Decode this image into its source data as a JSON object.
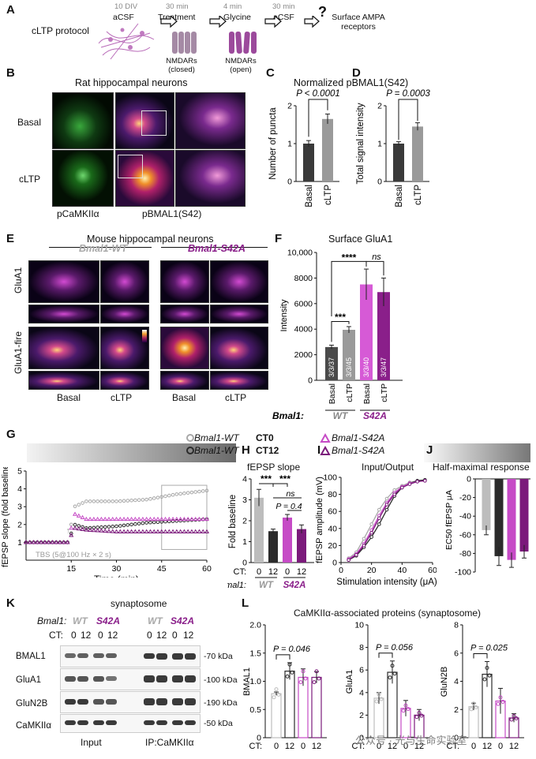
{
  "panelA": {
    "letter": "A",
    "protocol_label": "cLTP protocol",
    "steps": [
      {
        "time": "10 DIV",
        "label": "aCSF"
      },
      {
        "time": "30 min",
        "label": "Treatment"
      },
      {
        "time": "4 min",
        "label": "Glycine"
      },
      {
        "time": "30 min",
        "label": "aCSF"
      }
    ],
    "final": "Surface AMPA receptors",
    "final_q": "?",
    "nmdar_closed": "NMDARs (closed)",
    "nmdar_open": "NMDARs (open)"
  },
  "panelB": {
    "letter": "B",
    "title": "Rat hippocampal neurons",
    "rows": [
      "Basal",
      "cLTP"
    ],
    "cols": [
      "pCaMKIIα",
      "pBMAL1(S42)"
    ]
  },
  "panelCD": {
    "title": "Normalized pBMAL1(S42)"
  },
  "panelC": {
    "letter": "C",
    "pval": "P < 0.0001",
    "ylabel": "Number of puncta",
    "categories": [
      "Basal",
      "cLTP"
    ]
  },
  "panelD": {
    "letter": "D",
    "pval": "P = 0.0003",
    "ylabel": "Total signal intensity",
    "categories": [
      "Basal",
      "cLTP"
    ]
  },
  "panelE": {
    "letter": "E",
    "title": "Mouse hippocampal neurons",
    "genotypes": [
      "Bmal1-WT",
      "Bmal1-S42A"
    ],
    "rows": [
      "GluA1",
      "GluA1-fire"
    ],
    "cols": [
      "Basal",
      "cLTP",
      "Basal",
      "cLTP"
    ]
  },
  "panelF": {
    "letter": "F",
    "title": "Surface GluA1",
    "ylabel": "Intensity",
    "sig_wt": "***",
    "sig_main": "****",
    "sig_ns": "ns",
    "genotype_prefix": "Bmal1:",
    "genotypes": [
      "WT",
      "S42A"
    ]
  },
  "panelG": {
    "letter": "G",
    "ylabel": "fEPSP slope (fold baseline)",
    "xlabel": "Time (min)",
    "tbs": "TBS (5@100 Hz × 2 s)"
  },
  "legend": [
    {
      "name": "Bmal1-WT",
      "tag": "CT0",
      "marker": "circle",
      "color": "#a8a8a8"
    },
    {
      "name": "Bmal1-WT",
      "tag": "CT12",
      "marker": "circle",
      "color": "#2b2b2b"
    },
    {
      "name": "Bmal1-S42A",
      "tag": "",
      "marker": "triangle",
      "color": "#c64bc6"
    },
    {
      "name": "Bmal1-S42A",
      "tag": "",
      "marker": "triangle",
      "color": "#7b1a7b"
    }
  ],
  "panelH": {
    "letter": "H",
    "title": "fEPSP slope",
    "ylabel": "Fold baseline",
    "sig1": "***",
    "sig2": "***",
    "ns": "ns",
    "pval": "P = 0.4",
    "ct_prefix": "CT:",
    "cts": [
      "0",
      "12",
      "0",
      "12"
    ],
    "genotype_prefix": "Bmal1:",
    "genotypes": [
      "WT",
      "S42A"
    ]
  },
  "panelI": {
    "letter": "I",
    "title": "Input/Output",
    "ylabel": "fEPSP amplitude (mV)",
    "xlabel": "Stimulation intensity (μA)"
  },
  "panelJ": {
    "letter": "J",
    "title": "Half-maximal response",
    "ylabel": "EC50 fEPSP μA"
  },
  "panelK": {
    "letter": "K",
    "title": "synaptosome",
    "genotype_prefix": "Bmal1:",
    "genotypes": [
      "WT",
      "S42A",
      "WT",
      "S42A"
    ],
    "ct_prefix": "CT:",
    "cts": [
      "0",
      "12",
      "0",
      "12",
      "0",
      "12",
      "0",
      "12"
    ],
    "rows": [
      "BMAL1",
      "GluA1",
      "GluN2B",
      "CaMKIIα"
    ],
    "kda": [
      "-70 kDa",
      "-100 kDa",
      "-190 kDa",
      "-50 kDa"
    ],
    "groups": [
      "Input",
      "IP:CaMKIIα"
    ]
  },
  "panelL": {
    "letter": "L",
    "title": "CaMKIIα-associated proteins (synaptosome)",
    "subs": [
      {
        "ylabel": "BMAL1",
        "pval": "P = 0.046"
      },
      {
        "ylabel": "GluA1",
        "pval": "P = 0.056"
      },
      {
        "ylabel": "GluN2B",
        "pval": "P = 0.025"
      }
    ],
    "ct_prefix": "CT:",
    "cts": [
      "0",
      "12",
      "0",
      "12"
    ]
  },
  "watermark": "公众号 · 光与生命实验室",
  "chart_data": [
    {
      "id": "C",
      "type": "bar",
      "categories": [
        "Basal",
        "cLTP"
      ],
      "values": [
        1.0,
        1.65
      ],
      "errors": [
        0.08,
        0.13
      ],
      "ylim": [
        0,
        2
      ],
      "yticks": [
        0,
        1,
        2
      ],
      "colors": [
        "#3a3a3a",
        "#9a9a9a"
      ]
    },
    {
      "id": "D",
      "type": "bar",
      "categories": [
        "Basal",
        "cLTP"
      ],
      "values": [
        1.0,
        1.45
      ],
      "errors": [
        0.05,
        0.1
      ],
      "ylim": [
        0,
        2
      ],
      "yticks": [
        0,
        1,
        2
      ],
      "colors": [
        "#3a3a3a",
        "#9a9a9a"
      ]
    },
    {
      "id": "F",
      "type": "bar",
      "categories": [
        "Basal WT",
        "cLTP WT",
        "Basal S42A",
        "cLTP S42A"
      ],
      "values": [
        2600,
        3950,
        7500,
        6900
      ],
      "errors": [
        150,
        250,
        1200,
        1100
      ],
      "n_labels": [
        "3/3/37",
        "3/3/45",
        "3/3/40",
        "3/3/47"
      ],
      "ylim": [
        0,
        10000
      ],
      "yticks": [
        0,
        2000,
        4000,
        6000,
        8000,
        10000
      ],
      "ytick_labels": [
        "0",
        "2000",
        "4000",
        "6000",
        "8000",
        "10,000"
      ],
      "colors": [
        "#4a4a4a",
        "#9a9a9a",
        "#d65ad6",
        "#8a1f8a"
      ]
    },
    {
      "id": "G",
      "type": "scatter",
      "xlim": [
        0,
        60
      ],
      "ylim": [
        0,
        5
      ],
      "xticks": [
        15,
        30,
        45,
        60
      ],
      "yticks": [
        1,
        2,
        3,
        4,
        5
      ],
      "series": [
        {
          "color": "#a8a8a8",
          "marker": "circle",
          "x": [
            0,
            14,
            16,
            20,
            30,
            40,
            50,
            60
          ],
          "y": [
            1,
            1,
            3.0,
            3.3,
            3.3,
            3.4,
            3.7,
            3.9
          ]
        },
        {
          "color": "#2b2b2b",
          "marker": "circle",
          "x": [
            0,
            14,
            16,
            20,
            30,
            40,
            50,
            60
          ],
          "y": [
            1,
            1,
            2.0,
            1.8,
            1.9,
            2.1,
            2.2,
            2.3
          ]
        },
        {
          "color": "#c64bc6",
          "marker": "triangle",
          "x": [
            0,
            14,
            16,
            20,
            30,
            40,
            50,
            60
          ],
          "y": [
            1,
            1,
            2.6,
            2.3,
            2.3,
            2.3,
            2.3,
            2.3
          ]
        },
        {
          "color": "#7b1a7b",
          "marker": "triangle",
          "x": [
            0,
            14,
            16,
            20,
            30,
            40,
            50,
            60
          ],
          "y": [
            1,
            1,
            1.8,
            1.7,
            1.6,
            1.6,
            1.6,
            1.6
          ]
        }
      ]
    },
    {
      "id": "H",
      "type": "bar",
      "categories": [
        "WT CT0",
        "WT CT12",
        "S42A CT0",
        "S42A CT12"
      ],
      "values": [
        3.1,
        1.5,
        2.15,
        1.6
      ],
      "errors": [
        0.4,
        0.1,
        0.15,
        0.2
      ],
      "ylim": [
        0,
        4
      ],
      "yticks": [
        0,
        1,
        2,
        3,
        4
      ],
      "colors": [
        "#bdbdbd",
        "#2b2b2b",
        "#c64bc6",
        "#7b1a7b"
      ]
    },
    {
      "id": "I",
      "type": "line",
      "xlim": [
        0,
        60
      ],
      "ylim": [
        0,
        100
      ],
      "xticks": [
        0,
        20,
        40,
        60
      ],
      "yticks": [
        0,
        20,
        40,
        60,
        80,
        100
      ],
      "series": [
        {
          "color": "#a8a8a8",
          "x": [
            5,
            10,
            15,
            20,
            25,
            30,
            35,
            40,
            45,
            50,
            55
          ],
          "y": [
            5,
            12,
            28,
            45,
            62,
            75,
            85,
            90,
            94,
            96,
            97
          ]
        },
        {
          "color": "#2b2b2b",
          "x": [
            5,
            10,
            15,
            20,
            25,
            30,
            35,
            40,
            45,
            50,
            55
          ],
          "y": [
            3,
            8,
            18,
            30,
            45,
            62,
            78,
            88,
            93,
            96,
            97
          ]
        },
        {
          "color": "#c64bc6",
          "x": [
            5,
            10,
            15,
            20,
            25,
            30,
            35,
            40,
            45,
            50,
            55
          ],
          "y": [
            4,
            10,
            22,
            38,
            55,
            70,
            82,
            89,
            93,
            95,
            96
          ]
        },
        {
          "color": "#7b1a7b",
          "x": [
            5,
            10,
            15,
            20,
            25,
            30,
            35,
            40,
            45,
            50,
            55
          ],
          "y": [
            3,
            9,
            20,
            35,
            52,
            68,
            80,
            88,
            92,
            95,
            96
          ]
        }
      ]
    },
    {
      "id": "J",
      "type": "bar",
      "categories": [
        "WT CT0",
        "WT CT12",
        "S42A CT0",
        "S42A CT12"
      ],
      "values": [
        -55,
        -83,
        -87,
        -78
      ],
      "errors": [
        5,
        10,
        8,
        7
      ],
      "ylim": [
        -100,
        0
      ],
      "yticks": [
        0,
        -20,
        -40,
        -60,
        -80,
        -100
      ],
      "colors": [
        "#bdbdbd",
        "#2b2b2b",
        "#c64bc6",
        "#7b1a7b"
      ]
    },
    {
      "id": "L-BMAL1",
      "type": "bar",
      "categories": [
        "WT CT0",
        "WT CT12",
        "S42A CT0",
        "S42A CT12"
      ],
      "values": [
        0.78,
        1.18,
        1.07,
        1.07
      ],
      "errors": [
        0.03,
        0.15,
        0.15,
        0.1
      ],
      "ylim": [
        0,
        2.0
      ],
      "yticks": [
        0,
        0.5,
        1.0,
        1.5,
        2.0
      ],
      "ytick_labels": [
        "0",
        "0.5",
        "1.0",
        "1.5",
        "2.0"
      ],
      "colors": [
        "#bdbdbd",
        "#2b2b2b",
        "#c64bc6",
        "#7b1a7b"
      ]
    },
    {
      "id": "L-GluA1",
      "type": "bar",
      "categories": [
        "WT CT0",
        "WT CT12",
        "S42A CT0",
        "S42A CT12"
      ],
      "values": [
        3.5,
        5.8,
        2.6,
        2.0
      ],
      "errors": [
        0.5,
        1.0,
        0.7,
        0.5
      ],
      "ylim": [
        0,
        10
      ],
      "yticks": [
        0,
        2,
        4,
        6,
        8,
        10
      ],
      "colors": [
        "#bdbdbd",
        "#2b2b2b",
        "#c64bc6",
        "#7b1a7b"
      ]
    },
    {
      "id": "L-GluN2B",
      "type": "bar",
      "categories": [
        "WT CT0",
        "WT CT12",
        "S42A CT0",
        "S42A CT12"
      ],
      "values": [
        2.2,
        4.5,
        2.6,
        1.4
      ],
      "errors": [
        0.25,
        0.9,
        0.9,
        0.3
      ],
      "ylim": [
        0,
        8
      ],
      "yticks": [
        0,
        2,
        4,
        6,
        8
      ],
      "colors": [
        "#bdbdbd",
        "#2b2b2b",
        "#c64bc6",
        "#7b1a7b"
      ]
    }
  ]
}
